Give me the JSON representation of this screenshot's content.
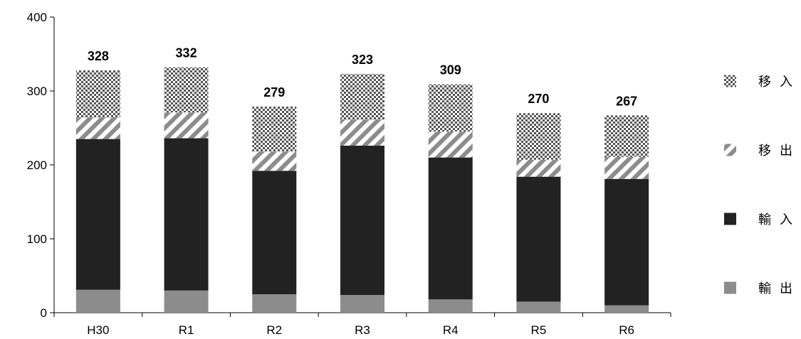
{
  "chart_data": {
    "type": "bar",
    "stacked": true,
    "title": "",
    "xlabel": "",
    "ylabel": "",
    "ylim": [
      0,
      400
    ],
    "yticks": [
      0,
      100,
      200,
      300,
      400
    ],
    "grid": false,
    "legend_placement": "right",
    "categories": [
      "H30",
      "R1",
      "R2",
      "R3",
      "R4",
      "R5",
      "R6"
    ],
    "totals": [
      328,
      332,
      279,
      323,
      309,
      270,
      267
    ],
    "series": [
      {
        "name": "輸出",
        "values": [
          31,
          30,
          25,
          24,
          18,
          15,
          10
        ],
        "fill": "solid-gray",
        "color": "#8c8c8c"
      },
      {
        "name": "輸入",
        "values": [
          204,
          206,
          167,
          202,
          192,
          169,
          171
        ],
        "fill": "solid-black",
        "color": "#222222"
      },
      {
        "name": "移出",
        "values": [
          29,
          35,
          26,
          35,
          35,
          23,
          30
        ],
        "fill": "diagonal-stripes",
        "color": "#8c8c8c"
      },
      {
        "name": "移入",
        "values": [
          64,
          61,
          61,
          62,
          64,
          63,
          56
        ],
        "fill": "checker",
        "color": "#555555"
      }
    ],
    "legend_order": [
      "移入",
      "移出",
      "輸入",
      "輸出"
    ]
  }
}
